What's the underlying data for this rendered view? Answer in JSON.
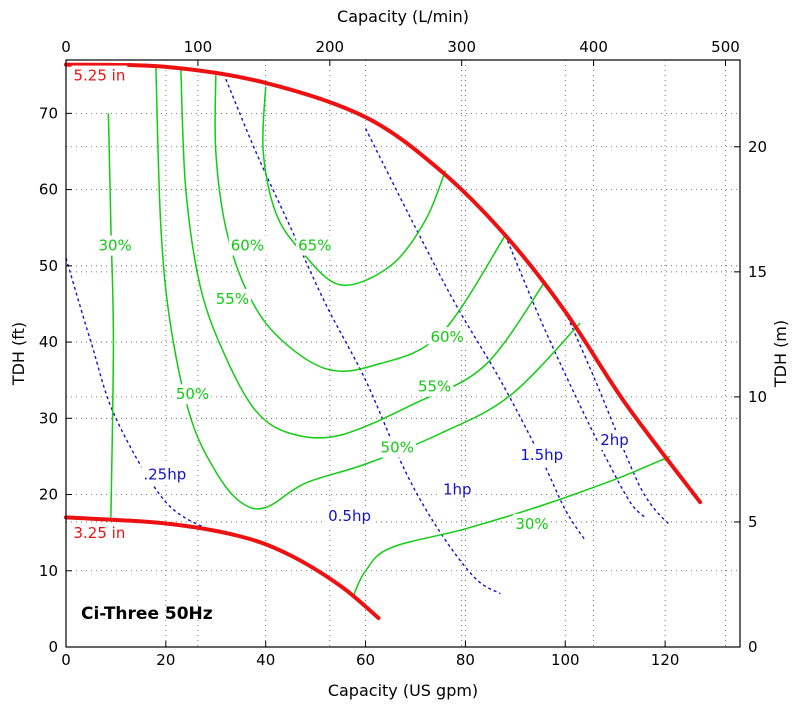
{
  "chart_data": {
    "type": "line",
    "title": "Ci-Three 50Hz",
    "xlabel": "Capacity (US gpm)",
    "ylabel": "TDH (ft)",
    "x2label": "Capacity (L/min)",
    "y2label": "TDH (m)",
    "xlim": [
      0,
      135
    ],
    "ylim": [
      0,
      77
    ],
    "x2lim": [
      0,
      511
    ],
    "y2lim": [
      0,
      23.47
    ],
    "xticks": [
      0,
      20,
      40,
      60,
      80,
      100,
      120
    ],
    "yticks": [
      0,
      10,
      20,
      30,
      40,
      50,
      60,
      70
    ],
    "x2ticks": [
      0,
      100,
      200,
      300,
      400,
      500
    ],
    "y2ticks": [
      0,
      5,
      10,
      15,
      20
    ],
    "grid": true,
    "colors": {
      "impeller": "#ee1111",
      "efficiency": "#11cc11",
      "power": "#1111cc"
    },
    "impeller_curves": [
      {
        "name": "5.25 in",
        "points": [
          [
            0,
            76.4
          ],
          [
            20,
            76.1
          ],
          [
            40,
            74.0
          ],
          [
            60,
            69.5
          ],
          [
            75,
            62.5
          ],
          [
            88,
            54
          ],
          [
            100,
            44
          ],
          [
            112,
            32
          ],
          [
            127,
            19
          ]
        ]
      },
      {
        "name": "3.25 in",
        "points": [
          [
            0,
            17
          ],
          [
            20,
            16.2
          ],
          [
            35,
            14.5
          ],
          [
            45,
            12
          ],
          [
            55,
            8
          ],
          [
            62.6,
            3.8
          ]
        ]
      }
    ],
    "efficiency_curves": [
      {
        "name": "30%",
        "points": [
          [
            9,
            17
          ],
          [
            9.5,
            40
          ],
          [
            9,
            55
          ],
          [
            8.5,
            70
          ]
        ]
      },
      {
        "name": "30%",
        "points": [
          [
            57.6,
            6.8
          ],
          [
            60,
            10
          ],
          [
            65,
            13
          ],
          [
            80,
            15.5
          ],
          [
            95,
            18.5
          ],
          [
            110,
            22
          ],
          [
            121,
            25
          ]
        ]
      },
      {
        "name": "50%",
        "points": [
          [
            18,
            76
          ],
          [
            19,
            55
          ],
          [
            21,
            42
          ],
          [
            25,
            30
          ],
          [
            30,
            23
          ],
          [
            35,
            19
          ],
          [
            40,
            18.3
          ],
          [
            48,
            21.5
          ],
          [
            60,
            24
          ],
          [
            75,
            28
          ],
          [
            89,
            33
          ],
          [
            103,
            42.5
          ]
        ]
      },
      {
        "name": "55%",
        "points": [
          [
            23,
            76
          ],
          [
            24,
            60
          ],
          [
            27,
            47
          ],
          [
            32,
            38
          ],
          [
            38,
            31
          ],
          [
            45,
            28
          ],
          [
            55,
            27.8
          ],
          [
            70,
            32
          ],
          [
            84,
            37
          ],
          [
            96,
            48
          ]
        ]
      },
      {
        "name": "60%",
        "points": [
          [
            30,
            75
          ],
          [
            30,
            65
          ],
          [
            32,
            55
          ],
          [
            36,
            47
          ],
          [
            42,
            41
          ],
          [
            52,
            36.5
          ],
          [
            62,
            37
          ],
          [
            75,
            41
          ],
          [
            88,
            54
          ]
        ]
      },
      {
        "name": "65%",
        "points": [
          [
            40,
            73.5
          ],
          [
            39.5,
            65
          ],
          [
            42,
            57
          ],
          [
            47,
            52
          ],
          [
            55,
            47.5
          ],
          [
            65,
            50
          ],
          [
            72,
            56
          ],
          [
            76,
            62.5
          ]
        ]
      }
    ],
    "power_curves": [
      {
        "name": ".25hp",
        "points": [
          [
            0,
            51
          ],
          [
            5,
            40
          ],
          [
            10,
            30
          ],
          [
            20,
            19
          ],
          [
            30,
            15
          ]
        ]
      },
      {
        "name": "0.5hp",
        "points": [
          [
            32,
            74.5
          ],
          [
            38,
            65
          ],
          [
            45,
            55
          ],
          [
            52,
            45
          ],
          [
            60,
            35
          ],
          [
            68,
            23
          ],
          [
            75,
            15
          ],
          [
            82,
            9
          ],
          [
            87,
            7
          ]
        ]
      },
      {
        "name": "1hp",
        "points": [
          [
            60,
            68
          ],
          [
            70,
            55
          ],
          [
            78,
            45
          ],
          [
            87,
            35
          ],
          [
            95,
            25
          ],
          [
            100,
            18
          ],
          [
            104,
            14
          ]
        ]
      },
      {
        "name": "1.5hp",
        "points": [
          [
            88,
            54
          ],
          [
            95,
            43
          ],
          [
            102,
            33
          ],
          [
            108,
            25
          ],
          [
            113,
            19
          ],
          [
            116,
            17
          ]
        ]
      },
      {
        "name": "2hp",
        "points": [
          [
            100,
            44
          ],
          [
            106,
            35
          ],
          [
            111,
            27
          ],
          [
            115,
            21
          ],
          [
            118,
            18
          ],
          [
            121,
            16
          ]
        ]
      }
    ],
    "annotations": [
      {
        "text": "5.25 in",
        "color": "red",
        "x": 1.5,
        "y": 74.3
      },
      {
        "text": "3.25 in",
        "color": "red",
        "x": 1.5,
        "y": 14.3
      },
      {
        "text": "30%",
        "color": "green",
        "x": 6.5,
        "y": 52
      },
      {
        "text": "60%",
        "color": "green",
        "x": 33,
        "y": 52
      },
      {
        "text": "65%",
        "color": "green",
        "x": 46.5,
        "y": 52
      },
      {
        "text": "55%",
        "color": "green",
        "x": 30,
        "y": 45
      },
      {
        "text": "60%",
        "color": "green",
        "x": 73,
        "y": 40
      },
      {
        "text": "50%",
        "color": "green",
        "x": 22,
        "y": 32.5
      },
      {
        "text": "55%",
        "color": "green",
        "x": 70.5,
        "y": 33.5
      },
      {
        "text": "50%",
        "color": "green",
        "x": 63,
        "y": 25.5
      },
      {
        "text": "30%",
        "color": "green",
        "x": 90,
        "y": 15.5
      },
      {
        "text": ".25hp",
        "color": "blue",
        "x": 15.5,
        "y": 22
      },
      {
        "text": "0.5hp",
        "color": "blue",
        "x": 52.5,
        "y": 16.5
      },
      {
        "text": "1hp",
        "color": "blue",
        "x": 75.5,
        "y": 20
      },
      {
        "text": "1.5hp",
        "color": "blue",
        "x": 91,
        "y": 24.5
      },
      {
        "text": "2hp",
        "color": "blue",
        "x": 107,
        "y": 26.5
      }
    ]
  }
}
